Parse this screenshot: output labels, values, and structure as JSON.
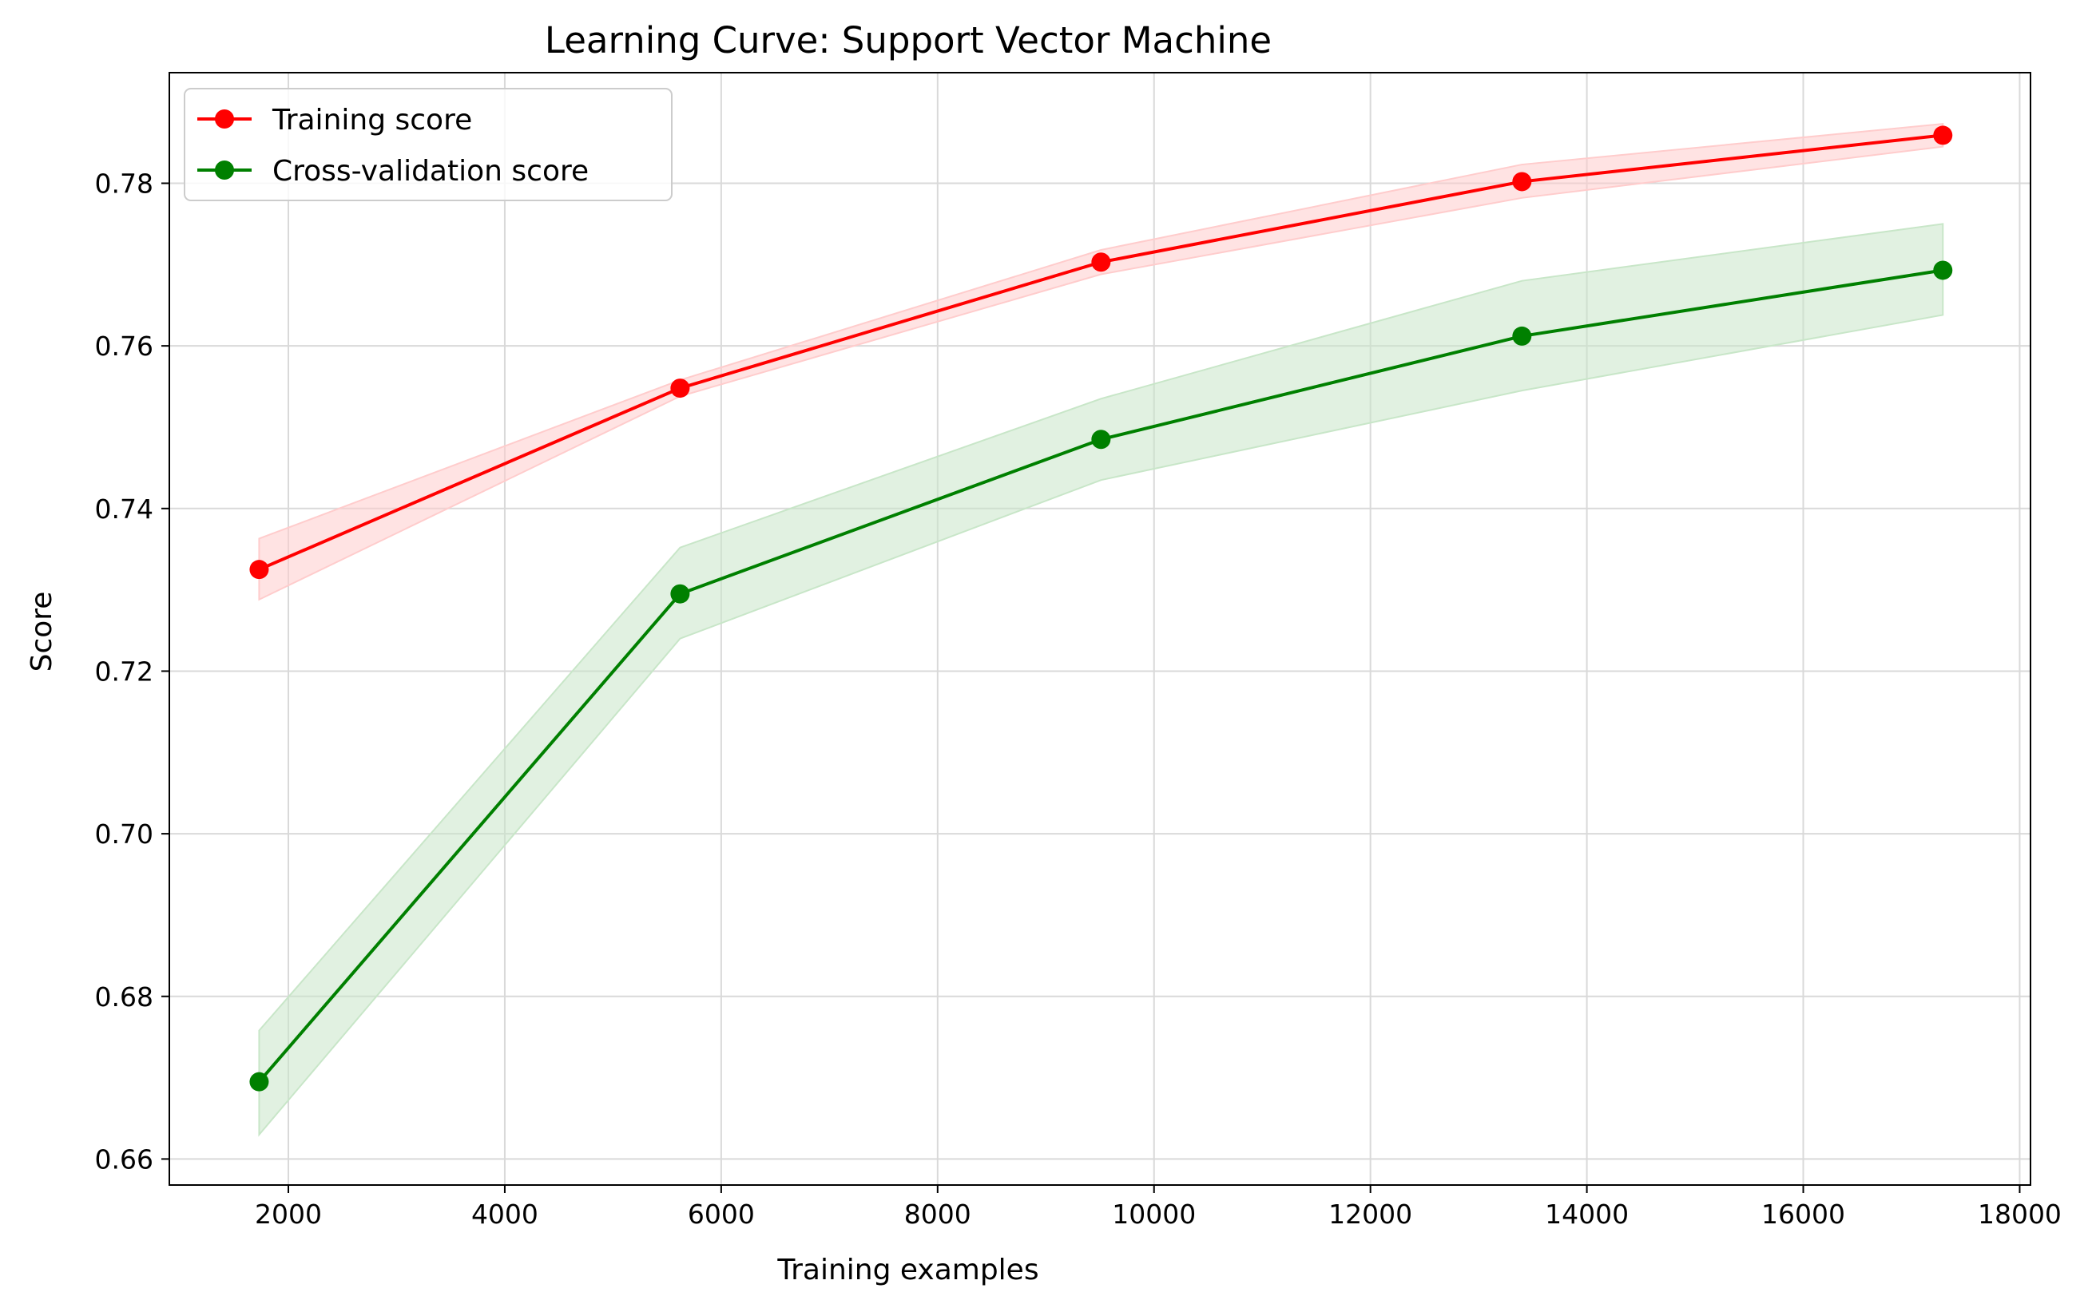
{
  "chart_data": {
    "type": "line",
    "title": "Learning Curve: Support Vector Machine",
    "xlabel": "Training examples",
    "ylabel": "Score",
    "xlim": [
      900,
      18100
    ],
    "ylim": [
      0.6568,
      0.7936
    ],
    "xticks": [
      2000,
      4000,
      6000,
      8000,
      10000,
      12000,
      14000,
      16000,
      18000
    ],
    "xtick_labels": [
      "2000",
      "4000",
      "6000",
      "8000",
      "10000",
      "12000",
      "14000",
      "16000",
      "18000"
    ],
    "yticks": [
      0.66,
      0.68,
      0.7,
      0.72,
      0.74,
      0.76,
      0.78
    ],
    "ytick_labels": [
      "0.66",
      "0.68",
      "0.70",
      "0.72",
      "0.74",
      "0.76",
      "0.78"
    ],
    "grid": true,
    "legend_position": "top-left",
    "x": [
      1730,
      5620,
      9510,
      13400,
      17290
    ],
    "series": [
      {
        "name": "Training score",
        "color": "#ff0000",
        "fill_color": "#ffcccc",
        "values": [
          0.7325,
          0.7548,
          0.7703,
          0.7802,
          0.7859
        ],
        "lower": [
          0.7288,
          0.7538,
          0.7688,
          0.7782,
          0.7845
        ],
        "upper": [
          0.7363,
          0.7558,
          0.7718,
          0.7823,
          0.7873
        ]
      },
      {
        "name": "Cross-validation score",
        "color": "#008000",
        "fill_color": "#c8e6c8",
        "values": [
          0.6695,
          0.7295,
          0.7485,
          0.7612,
          0.7693
        ],
        "lower": [
          0.663,
          0.724,
          0.7435,
          0.7545,
          0.7638
        ],
        "upper": [
          0.6758,
          0.7352,
          0.7535,
          0.768,
          0.775
        ]
      }
    ]
  }
}
